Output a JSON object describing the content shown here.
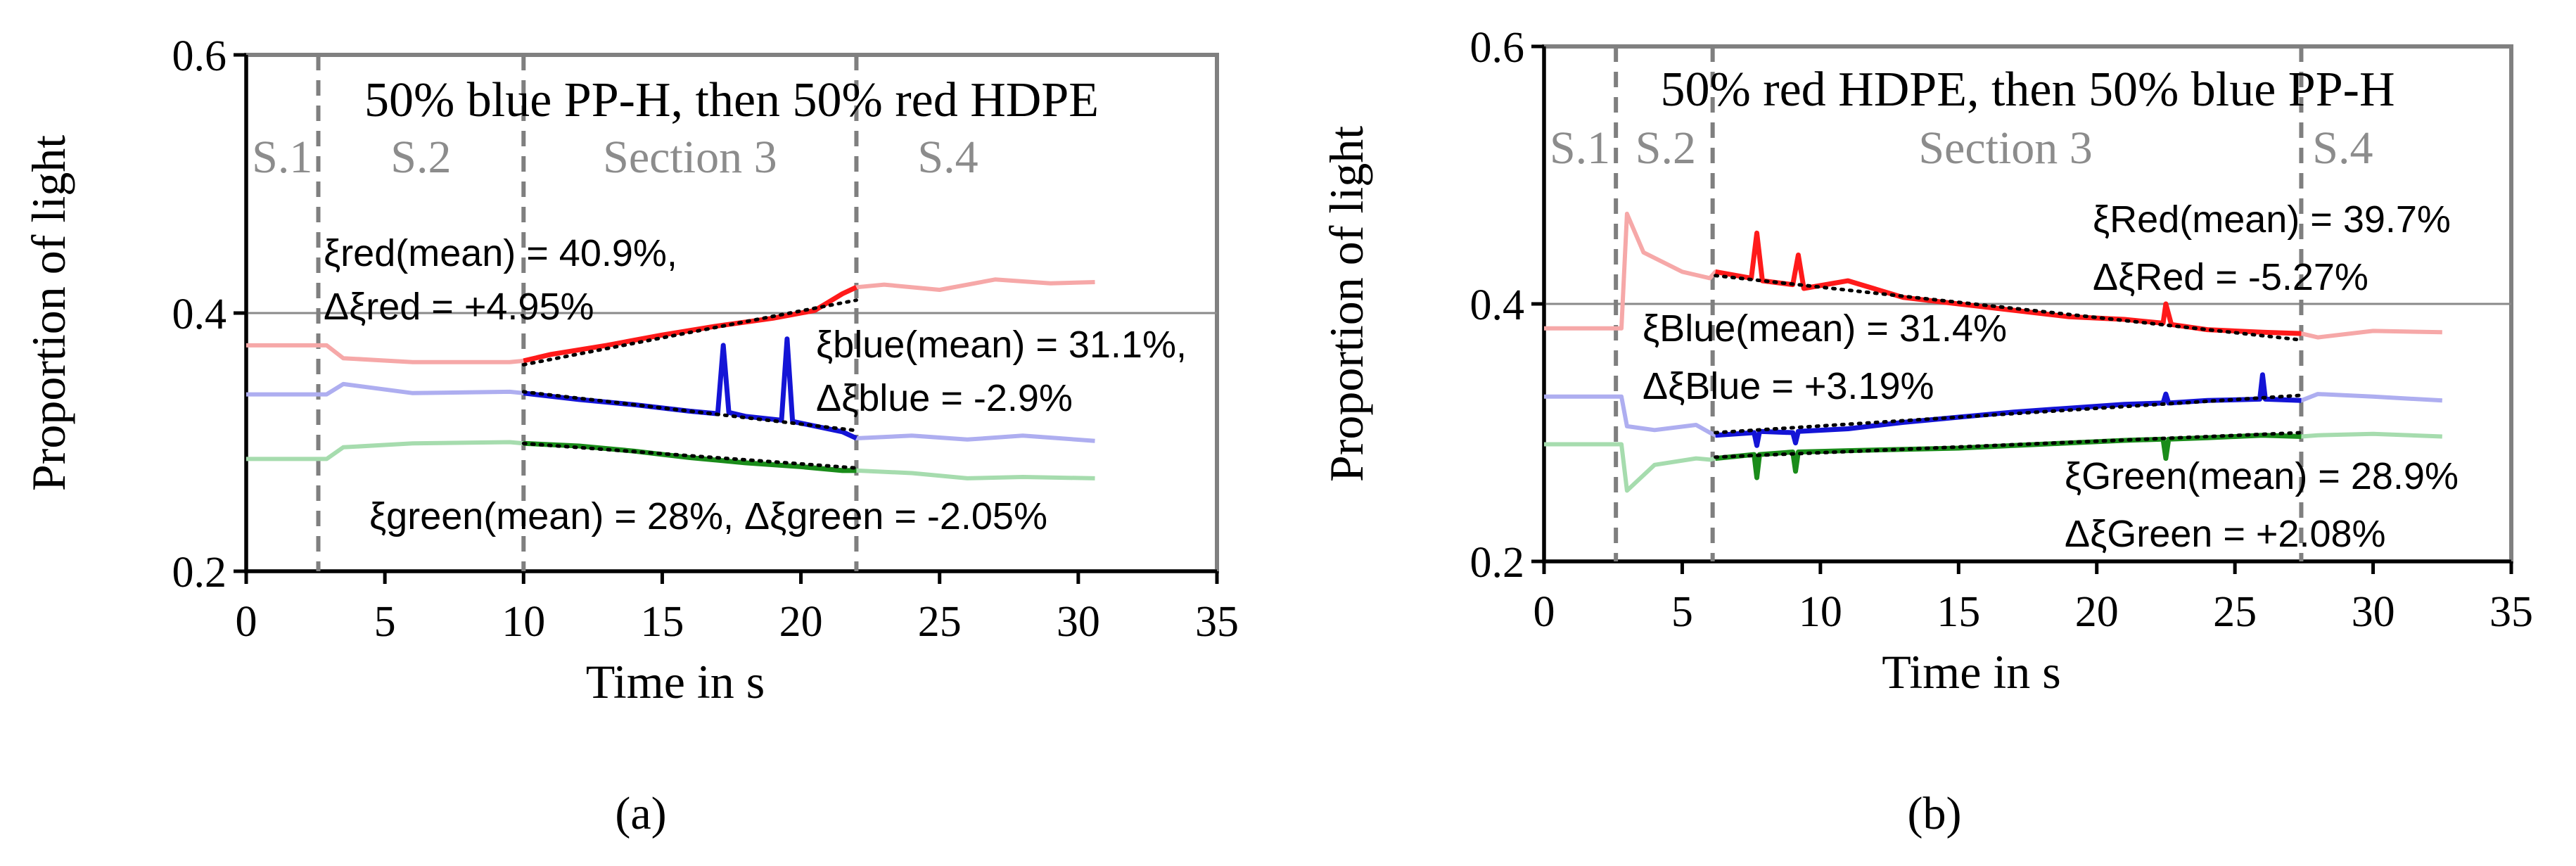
{
  "figure": {
    "panel_a_caption": "(a)",
    "panel_b_caption": "(b)"
  },
  "colors": {
    "red": "#ff1a1a",
    "blue": "#1414d6",
    "green": "#1a8c1a",
    "red_faint": "#f6a8a8",
    "blue_faint": "#aeaef0",
    "green_faint": "#a6dcae",
    "section_line": "#7f7f7f",
    "section_text": "#8c8c8c"
  },
  "chart_data": [
    {
      "type": "line",
      "title": "50% blue PP-H, then 50% red HDPE",
      "xlabel": "Time in s",
      "ylabel": "Proportion of light",
      "xlim": [
        0,
        35
      ],
      "ylim": [
        0.2,
        0.6
      ],
      "xticks": [
        "0",
        "5",
        "10",
        "15",
        "20",
        "25",
        "30",
        "35"
      ],
      "yticks": [
        "0.2",
        "0.4",
        "0.6"
      ],
      "section_boundaries": [
        2.6,
        10,
        22
      ],
      "section_labels": [
        {
          "text": "S.1",
          "x": 1.3
        },
        {
          "text": "S.2",
          "x": 6.3
        },
        {
          "text": "Section 3",
          "x": 16
        },
        {
          "text": "S.4",
          "x": 25.3
        }
      ],
      "series": [
        {
          "name": "red",
          "x": [
            0,
            2.9,
            3.5,
            6,
            9.5,
            10,
            11,
            13,
            15,
            17,
            19,
            20.5,
            21.5,
            22,
            23,
            25,
            27,
            29,
            30.6
          ],
          "values": [
            0.375,
            0.375,
            0.365,
            0.362,
            0.362,
            0.363,
            0.368,
            0.375,
            0.383,
            0.39,
            0.396,
            0.402,
            0.415,
            0.42,
            0.422,
            0.418,
            0.426,
            0.423,
            0.424
          ]
        },
        {
          "name": "blue",
          "x": [
            0,
            2.9,
            3.5,
            6,
            9.5,
            10,
            12,
            14,
            16,
            17,
            17.2,
            17.4,
            18,
            19.3,
            19.5,
            19.7,
            21.5,
            22,
            24,
            26,
            28,
            30.6
          ],
          "values": [
            0.337,
            0.337,
            0.345,
            0.338,
            0.339,
            0.338,
            0.333,
            0.329,
            0.324,
            0.322,
            0.375,
            0.323,
            0.32,
            0.317,
            0.38,
            0.316,
            0.308,
            0.303,
            0.305,
            0.302,
            0.305,
            0.301
          ]
        },
        {
          "name": "green",
          "x": [
            0,
            2.9,
            3.5,
            6,
            9.5,
            10,
            12,
            14,
            16,
            18,
            20,
            21.5,
            22,
            24,
            26,
            28,
            30.6
          ],
          "values": [
            0.287,
            0.287,
            0.296,
            0.299,
            0.3,
            0.299,
            0.297,
            0.293,
            0.288,
            0.284,
            0.281,
            0.278,
            0.278,
            0.276,
            0.272,
            0.273,
            0.272
          ]
        }
      ],
      "trendlines": [
        {
          "name": "red-trend",
          "x": [
            10,
            22
          ],
          "values": [
            0.36,
            0.41
          ]
        },
        {
          "name": "blue-trend",
          "x": [
            10,
            22
          ],
          "values": [
            0.339,
            0.309
          ]
        },
        {
          "name": "green-trend",
          "x": [
            10,
            22
          ],
          "values": [
            0.299,
            0.28
          ]
        }
      ],
      "annotations": [
        {
          "lines": [
            "ξred(mean) = 40.9%,",
            "Δξred = +4.95%"
          ]
        },
        {
          "lines": [
            "ξblue(mean) = 31.1%,",
            "Δξblue = -2.9%"
          ]
        },
        {
          "lines": [
            "ξgreen(mean) = 28%, Δξgreen = -2.05%"
          ]
        }
      ]
    },
    {
      "type": "line",
      "title": "50% red HDPE, then 50% blue PP-H",
      "xlabel": "Time in s",
      "ylabel": "Proportion of light",
      "xlim": [
        0,
        35
      ],
      "ylim": [
        0.2,
        0.6
      ],
      "xticks": [
        "0",
        "5",
        "10",
        "15",
        "20",
        "25",
        "30",
        "35"
      ],
      "yticks": [
        "0.2",
        "0.4",
        "0.6"
      ],
      "section_boundaries": [
        2.6,
        6.1,
        27.4
      ],
      "section_labels": [
        {
          "text": "S.1",
          "x": 1.3
        },
        {
          "text": "S.2",
          "x": 4.4
        },
        {
          "text": "Section 3",
          "x": 16.7
        },
        {
          "text": "S.4",
          "x": 28.9
        }
      ],
      "series": [
        {
          "name": "red",
          "x": [
            0,
            2.8,
            3,
            3.6,
            5,
            6,
            6.2,
            7.5,
            7.7,
            7.9,
            9,
            9.2,
            9.4,
            11,
            13,
            15,
            17,
            19,
            21,
            22.4,
            22.5,
            22.7,
            24,
            26,
            27.4,
            28,
            30,
            32.5
          ],
          "values": [
            0.381,
            0.381,
            0.47,
            0.44,
            0.425,
            0.42,
            0.425,
            0.42,
            0.455,
            0.418,
            0.415,
            0.438,
            0.412,
            0.418,
            0.405,
            0.4,
            0.395,
            0.39,
            0.388,
            0.385,
            0.4,
            0.384,
            0.38,
            0.378,
            0.377,
            0.374,
            0.379,
            0.378
          ]
        },
        {
          "name": "blue",
          "x": [
            0,
            2.8,
            3,
            4,
            5.5,
            6,
            6.2,
            7.6,
            7.7,
            7.8,
            9,
            9.1,
            9.2,
            11,
            13,
            15,
            17,
            19,
            21,
            22.4,
            22.5,
            22.6,
            24,
            25.9,
            26,
            26.1,
            27.4,
            28,
            30,
            32.5
          ],
          "values": [
            0.328,
            0.328,
            0.305,
            0.302,
            0.306,
            0.3,
            0.298,
            0.3,
            0.29,
            0.301,
            0.3,
            0.292,
            0.301,
            0.303,
            0.308,
            0.312,
            0.316,
            0.319,
            0.322,
            0.323,
            0.33,
            0.323,
            0.325,
            0.326,
            0.345,
            0.326,
            0.325,
            0.33,
            0.328,
            0.325
          ]
        },
        {
          "name": "green",
          "x": [
            0,
            2.8,
            3,
            4,
            5.5,
            6,
            6.2,
            7.6,
            7.7,
            7.8,
            9,
            9.1,
            9.2,
            11,
            13,
            15,
            17,
            19,
            21,
            22.4,
            22.5,
            22.6,
            24,
            26,
            27.4,
            28,
            30,
            32.5
          ],
          "values": [
            0.291,
            0.291,
            0.255,
            0.275,
            0.28,
            0.279,
            0.28,
            0.283,
            0.265,
            0.283,
            0.285,
            0.27,
            0.285,
            0.286,
            0.287,
            0.288,
            0.29,
            0.292,
            0.294,
            0.295,
            0.28,
            0.295,
            0.296,
            0.298,
            0.297,
            0.298,
            0.299,
            0.297
          ]
        }
      ],
      "trendlines": [
        {
          "name": "red-trend",
          "x": [
            6.2,
            27.4
          ],
          "values": [
            0.422,
            0.372
          ]
        },
        {
          "name": "blue-trend",
          "x": [
            6.2,
            27.4
          ],
          "values": [
            0.3,
            0.329
          ]
        },
        {
          "name": "green-trend",
          "x": [
            6.2,
            27.4
          ],
          "values": [
            0.281,
            0.3
          ]
        }
      ],
      "annotations": [
        {
          "lines": [
            "ξRed(mean) = 39.7%",
            "ΔξRed = -5.27%"
          ]
        },
        {
          "lines": [
            "ξBlue(mean) = 31.4%",
            "ΔξBlue = +3.19%"
          ]
        },
        {
          "lines": [
            "ξGreen(mean) = 28.9%",
            "ΔξGreen = +2.08%"
          ]
        }
      ]
    }
  ]
}
